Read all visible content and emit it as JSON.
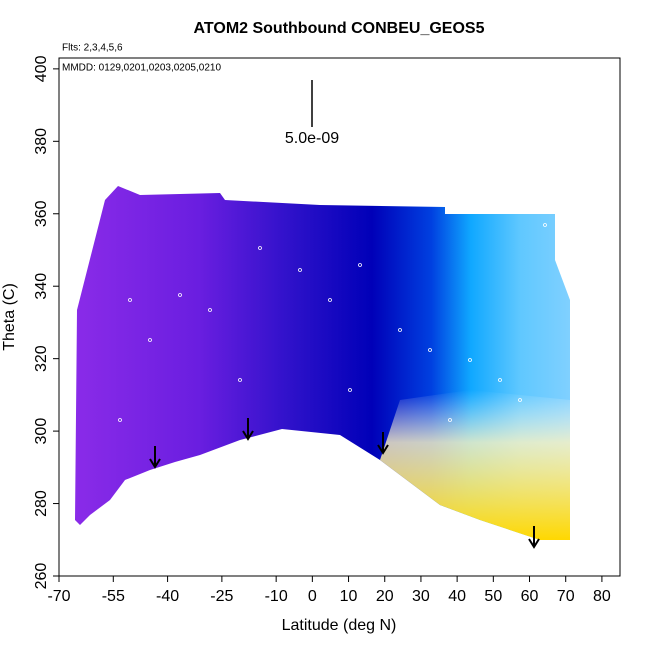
{
  "chart_data": {
    "type": "curtain",
    "title": "ATOM2 Southbound CONBEU_GEOS5",
    "annotations": [
      "Flts: 2,3,4,5,6",
      "MMDD: 0129,0201,0203,0205,0210"
    ],
    "scale_label": "5.0e-09",
    "x_label": "Latitude (deg N)",
    "y_label": "Theta (C)",
    "xlim": [
      -70,
      85
    ],
    "xticks": [
      -70,
      -55,
      -40,
      -25,
      -10,
      0,
      10,
      20,
      30,
      40,
      50,
      60,
      70,
      80
    ],
    "ylim": [
      260,
      403
    ],
    "yticks": [
      260,
      280,
      300,
      320,
      340,
      360,
      380,
      400
    ]
  }
}
